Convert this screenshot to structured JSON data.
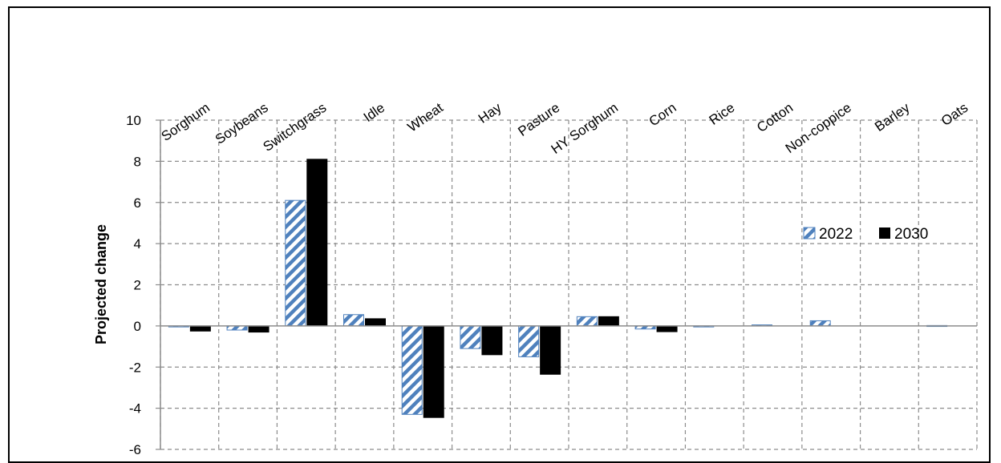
{
  "chart_data": {
    "type": "bar",
    "categories": [
      "Sorghum",
      "Soybeans",
      "Switchgrass",
      "Idle",
      "Wheat",
      "Hay",
      "Pasture",
      "HY Sorghum",
      "Corn",
      "Rice",
      "Cotton",
      "Non-coppice",
      "Barley",
      "Oats"
    ],
    "series": [
      {
        "name": "2022",
        "values": [
          -0.05,
          -0.2,
          6.1,
          0.55,
          -4.3,
          -1.1,
          -1.5,
          0.45,
          -0.15,
          -0.05,
          0.05,
          0.25,
          0.0,
          0.02
        ]
      },
      {
        "name": "2030",
        "values": [
          -0.25,
          -0.3,
          8.1,
          0.35,
          -4.45,
          -1.4,
          -2.35,
          0.45,
          -0.28,
          0.0,
          0.0,
          0.0,
          0.0,
          0.0
        ]
      }
    ],
    "series_colors": [
      "#4f81bd",
      "#000000"
    ],
    "ylabel": "Projected change",
    "ylim": [
      -6,
      10
    ],
    "yticks": [
      "10",
      "8",
      "6",
      "4",
      "2",
      "0",
      "-2",
      "-4",
      "-6"
    ],
    "grid": true,
    "legend_position": "right"
  }
}
